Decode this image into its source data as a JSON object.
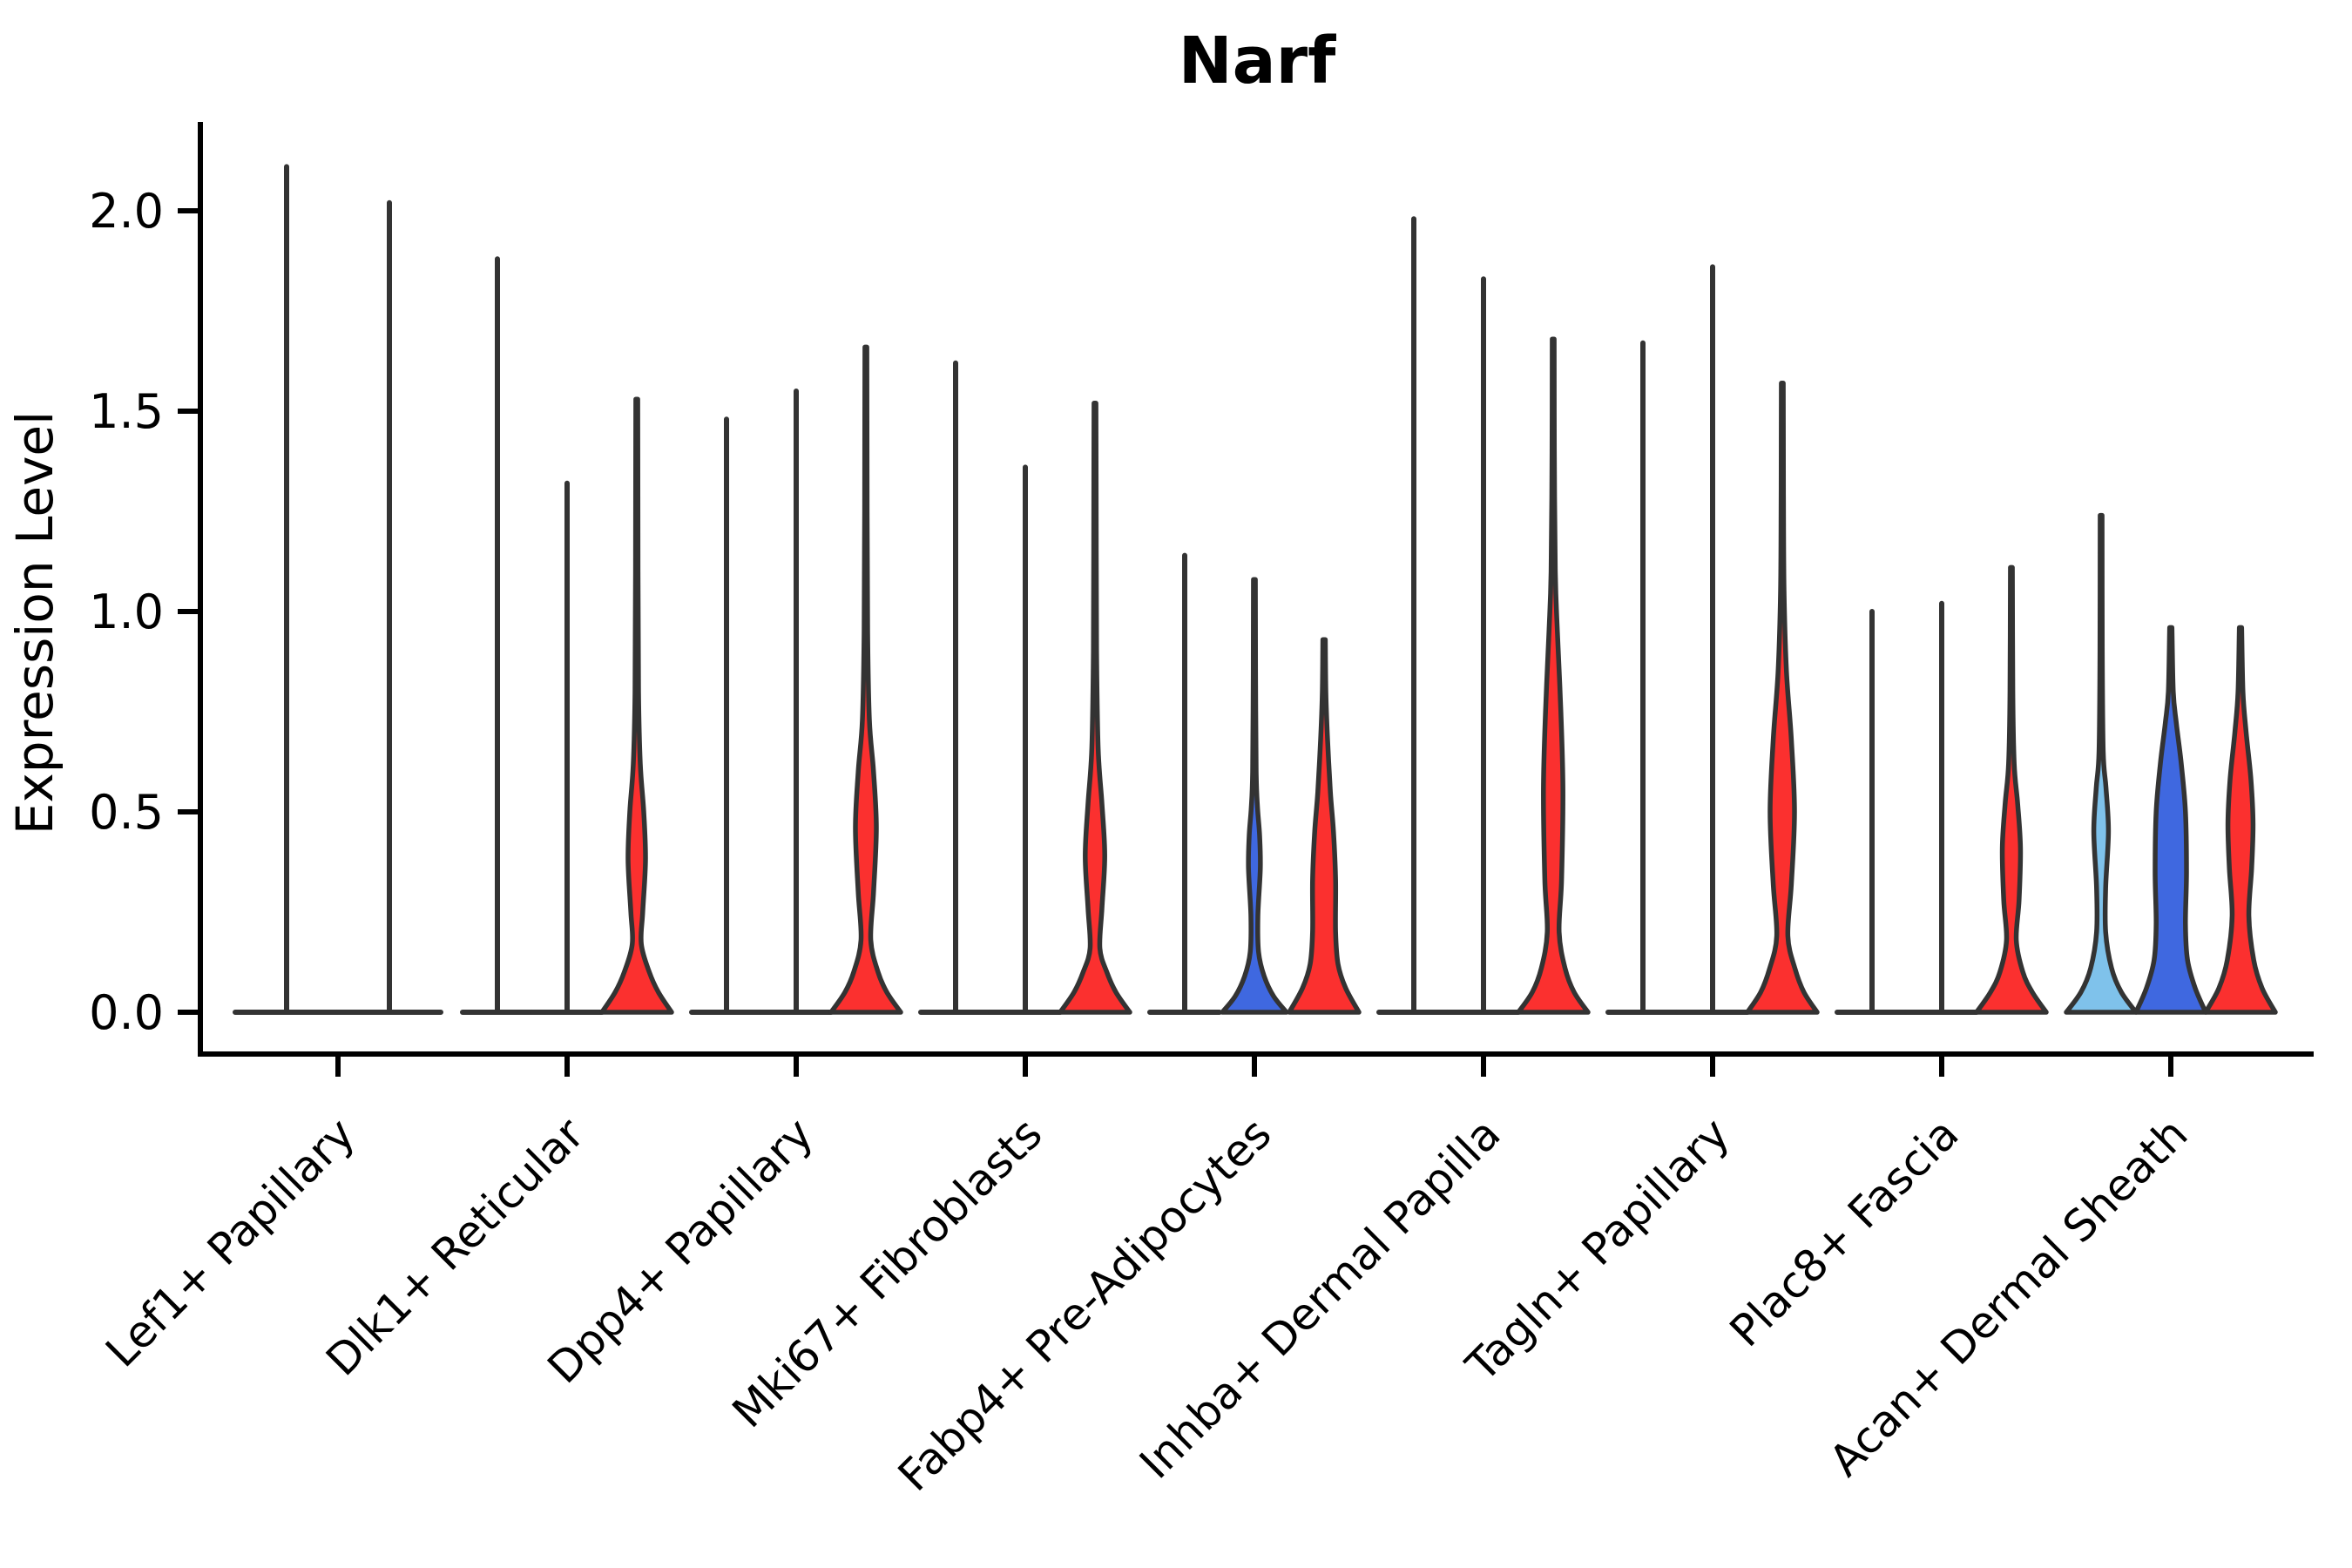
{
  "chart_data": {
    "type": "violin",
    "title": "Narf",
    "ylabel": "Expression Level",
    "xlabel": "",
    "yticks": [
      "0.0",
      "0.5",
      "1.0",
      "1.5",
      "2.0"
    ],
    "ytick_values": [
      0,
      0.5,
      1.0,
      1.5,
      2.0
    ],
    "ylim": [
      0,
      2.25
    ],
    "grid": false,
    "legend": "none",
    "background_color": "#ffffff",
    "axis_color": "#000000",
    "outline_color": "#333333",
    "split_colors": {
      "spike": "#333333",
      "red": "#FB302F",
      "blue": "#3F68E0",
      "lightblue": "#7FC2EB"
    },
    "categories": [
      "Lef1+ Papillary",
      "Dlk1+ Reticular",
      "Dpp4+ Papillary",
      "Mki67+ Fibroblasts",
      "Fabp4+ Pre-Adipocytes",
      "Inhba+ Dermal Papilla",
      "Tagln+ Papillary",
      "Plac8+ Fascia",
      "Acan+ Dermal Sheath"
    ],
    "series": [
      {
        "category": "Lef1+ Papillary",
        "violins": [
          {
            "type": "spike",
            "color": "spike",
            "peak": 2.11
          },
          {
            "type": "spike",
            "color": "spike",
            "peak": 2.02
          }
        ]
      },
      {
        "category": "Dlk1+ Reticular",
        "violins": [
          {
            "type": "spike",
            "color": "spike",
            "peak": 1.88
          },
          {
            "type": "spike",
            "color": "spike",
            "peak": 1.32
          },
          {
            "type": "violin",
            "color": "red",
            "peak": 1.53,
            "profile": [
              [
                0,
                1
              ],
              [
                0.05,
                0.62
              ],
              [
                0.1,
                0.36
              ],
              [
                0.17,
                0.13
              ],
              [
                0.25,
                0.17
              ],
              [
                0.38,
                0.25
              ],
              [
                0.5,
                0.2
              ],
              [
                0.62,
                0.1
              ],
              [
                0.8,
                0.05
              ],
              [
                1.1,
                0.035
              ],
              [
                1.53,
                0.028
              ]
            ]
          }
        ]
      },
      {
        "category": "Dpp4+ Papillary",
        "violins": [
          {
            "type": "spike",
            "color": "spike",
            "peak": 1.48
          },
          {
            "type": "spike",
            "color": "spike",
            "peak": 1.55
          },
          {
            "type": "violin",
            "color": "red",
            "peak": 1.66,
            "profile": [
              [
                0,
                1
              ],
              [
                0.05,
                0.6
              ],
              [
                0.1,
                0.35
              ],
              [
                0.18,
                0.14
              ],
              [
                0.3,
                0.22
              ],
              [
                0.46,
                0.3
              ],
              [
                0.6,
                0.22
              ],
              [
                0.73,
                0.1
              ],
              [
                0.95,
                0.05
              ],
              [
                1.25,
                0.035
              ],
              [
                1.66,
                0.028
              ]
            ]
          }
        ]
      },
      {
        "category": "Mki67+ Fibroblasts",
        "violins": [
          {
            "type": "spike",
            "color": "spike",
            "peak": 1.62
          },
          {
            "type": "spike",
            "color": "spike",
            "peak": 1.36
          },
          {
            "type": "violin",
            "color": "red",
            "peak": 1.52,
            "profile": [
              [
                0,
                1
              ],
              [
                0.05,
                0.6
              ],
              [
                0.1,
                0.34
              ],
              [
                0.16,
                0.14
              ],
              [
                0.26,
                0.2
              ],
              [
                0.39,
                0.28
              ],
              [
                0.52,
                0.2
              ],
              [
                0.66,
                0.09
              ],
              [
                0.9,
                0.045
              ],
              [
                1.2,
                0.035
              ],
              [
                1.52,
                0.028
              ]
            ]
          }
        ]
      },
      {
        "category": "Fabp4+ Pre-Adipocytes",
        "violins": [
          {
            "type": "spike",
            "color": "spike",
            "peak": 1.14
          },
          {
            "type": "violin",
            "color": "blue",
            "peak": 1.08,
            "profile": [
              [
                0,
                0.92
              ],
              [
                0.04,
                0.55
              ],
              [
                0.09,
                0.28
              ],
              [
                0.15,
                0.12
              ],
              [
                0.24,
                0.1
              ],
              [
                0.36,
                0.17
              ],
              [
                0.44,
                0.15
              ],
              [
                0.51,
                0.09
              ],
              [
                0.6,
                0.05
              ],
              [
                0.85,
                0.033
              ],
              [
                1.08,
                0.028
              ]
            ]
          },
          {
            "type": "violin",
            "color": "red",
            "peak": 0.93,
            "profile": [
              [
                0,
                1
              ],
              [
                0.06,
                0.62
              ],
              [
                0.12,
                0.4
              ],
              [
                0.2,
                0.33
              ],
              [
                0.33,
                0.33
              ],
              [
                0.45,
                0.27
              ],
              [
                0.55,
                0.18
              ],
              [
                0.68,
                0.1
              ],
              [
                0.8,
                0.05
              ],
              [
                0.93,
                0.035
              ]
            ]
          }
        ]
      },
      {
        "category": "Inhba+ Dermal Papilla",
        "violins": [
          {
            "type": "spike",
            "color": "spike",
            "peak": 1.98
          },
          {
            "type": "spike",
            "color": "spike",
            "peak": 1.83
          },
          {
            "type": "violin",
            "color": "red",
            "peak": 1.68,
            "profile": [
              [
                0,
                1
              ],
              [
                0.05,
                0.6
              ],
              [
                0.11,
                0.34
              ],
              [
                0.2,
                0.17
              ],
              [
                0.33,
                0.24
              ],
              [
                0.55,
                0.28
              ],
              [
                0.75,
                0.22
              ],
              [
                0.95,
                0.12
              ],
              [
                1.1,
                0.06
              ],
              [
                1.4,
                0.033
              ],
              [
                1.68,
                0.028
              ]
            ]
          }
        ]
      },
      {
        "category": "Tagln+ Papillary",
        "violins": [
          {
            "type": "spike",
            "color": "spike",
            "peak": 1.67
          },
          {
            "type": "spike",
            "color": "spike",
            "peak": 1.86
          },
          {
            "type": "violin",
            "color": "red",
            "peak": 1.57,
            "profile": [
              [
                0,
                1
              ],
              [
                0.05,
                0.62
              ],
              [
                0.11,
                0.36
              ],
              [
                0.19,
                0.16
              ],
              [
                0.32,
                0.26
              ],
              [
                0.5,
                0.35
              ],
              [
                0.68,
                0.26
              ],
              [
                0.85,
                0.12
              ],
              [
                1.05,
                0.05
              ],
              [
                1.3,
                0.033
              ],
              [
                1.57,
                0.028
              ]
            ]
          }
        ]
      },
      {
        "category": "Plac8+ Fascia",
        "violins": [
          {
            "type": "spike",
            "color": "spike",
            "peak": 1.0
          },
          {
            "type": "spike",
            "color": "spike",
            "peak": 1.02
          },
          {
            "type": "violin",
            "color": "red",
            "peak": 1.11,
            "profile": [
              [
                0,
                1
              ],
              [
                0.05,
                0.6
              ],
              [
                0.1,
                0.33
              ],
              [
                0.18,
                0.14
              ],
              [
                0.28,
                0.22
              ],
              [
                0.41,
                0.26
              ],
              [
                0.52,
                0.18
              ],
              [
                0.62,
                0.08
              ],
              [
                0.8,
                0.04
              ],
              [
                1.11,
                0.028
              ]
            ]
          }
        ]
      },
      {
        "category": "Acan+ Dermal Sheath",
        "violins": [
          {
            "type": "violin",
            "color": "lightblue",
            "peak": 1.24,
            "profile": [
              [
                0,
                1
              ],
              [
                0.05,
                0.58
              ],
              [
                0.11,
                0.3
              ],
              [
                0.2,
                0.13
              ],
              [
                0.31,
                0.13
              ],
              [
                0.45,
                0.21
              ],
              [
                0.56,
                0.14
              ],
              [
                0.65,
                0.06
              ],
              [
                0.9,
                0.033
              ],
              [
                1.24,
                0.028
              ]
            ]
          },
          {
            "type": "violin",
            "color": "blue",
            "peak": 0.96,
            "profile": [
              [
                0,
                1
              ],
              [
                0.06,
                0.7
              ],
              [
                0.13,
                0.48
              ],
              [
                0.22,
                0.42
              ],
              [
                0.35,
                0.45
              ],
              [
                0.5,
                0.42
              ],
              [
                0.62,
                0.3
              ],
              [
                0.72,
                0.16
              ],
              [
                0.8,
                0.07
              ],
              [
                0.96,
                0.033
              ]
            ]
          },
          {
            "type": "violin",
            "color": "red",
            "peak": 0.96,
            "profile": [
              [
                0,
                1
              ],
              [
                0.06,
                0.62
              ],
              [
                0.13,
                0.38
              ],
              [
                0.24,
                0.24
              ],
              [
                0.36,
                0.32
              ],
              [
                0.47,
                0.36
              ],
              [
                0.58,
                0.3
              ],
              [
                0.7,
                0.16
              ],
              [
                0.8,
                0.07
              ],
              [
                0.96,
                0.033
              ]
            ]
          }
        ]
      }
    ]
  }
}
